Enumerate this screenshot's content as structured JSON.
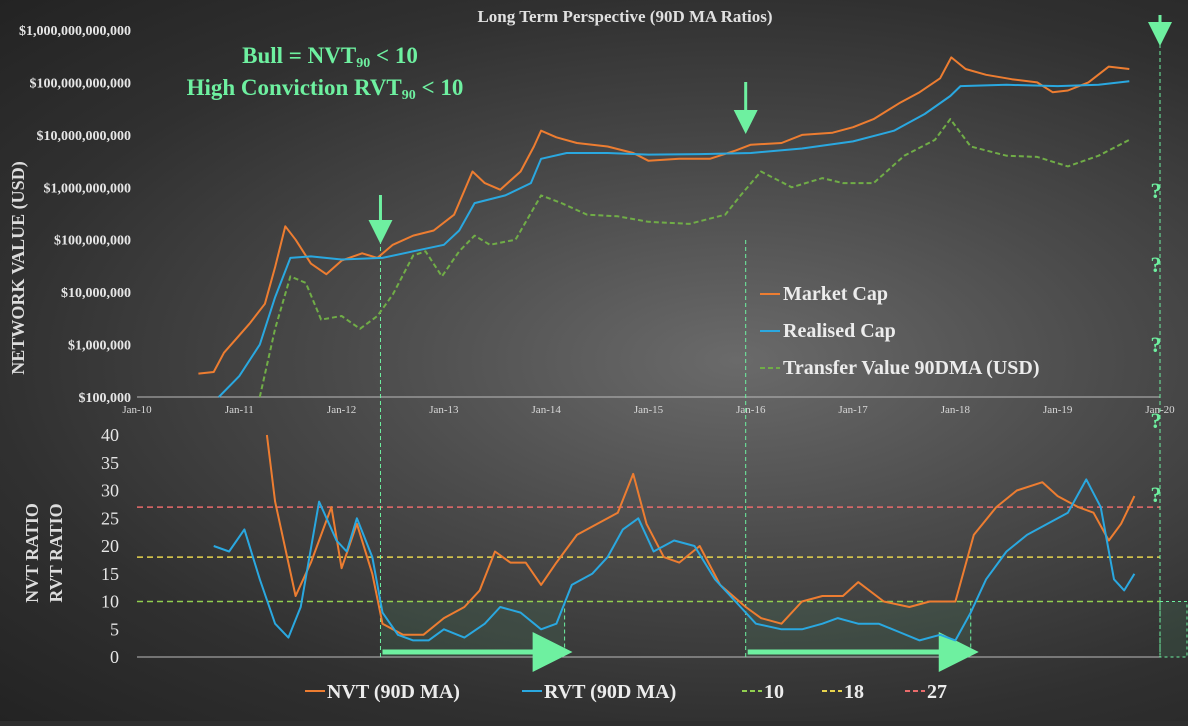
{
  "chart_data": [
    {
      "type": "line",
      "title": "Long Term Perspective (90D MA Ratios)",
      "ylabel": "NETWORK VALUE (USD)",
      "yscale": "log",
      "ylim": [
        100000,
        1000000000000
      ],
      "y_ticks": [
        "$100,000",
        "$1,000,000",
        "$10,000,000",
        "$100,000,000",
        "$1,000,000,000",
        "$10,000,000,000",
        "$100,000,000,000",
        "$1,000,000,000,000"
      ],
      "x_ticks": [
        "Jan-10",
        "Jan-11",
        "Jan-12",
        "Jan-13",
        "Jan-14",
        "Jan-15",
        "Jan-16",
        "Jan-17",
        "Jan-18",
        "Jan-19",
        "Jan-20"
      ],
      "xlim": [
        2010.0,
        2020.0
      ],
      "legend_position": "lower-right",
      "annotations": [
        "Bull = NVT₉₀ < 10",
        "High Conviction RVT₉₀ < 10"
      ],
      "annotation_lines": [
        {
          "pre": "Bull = NVT",
          "sub": "90",
          "post": " < 10"
        },
        {
          "pre": "High Conviction RVT",
          "sub": "90",
          "post": " < 10"
        }
      ],
      "question_marks": [
        "?",
        "?",
        "?",
        "?",
        "?"
      ],
      "arrow_dates": [
        2012.38,
        2015.95,
        2020.0
      ],
      "series": [
        {
          "name": "Market Cap",
          "color": "#ed7d31",
          "style": "solid",
          "points": [
            [
              2010.6,
              280000
            ],
            [
              2010.75,
              300000
            ],
            [
              2010.85,
              700000
            ],
            [
              2011.0,
              1500000
            ],
            [
              2011.1,
              2500000
            ],
            [
              2011.25,
              6000000
            ],
            [
              2011.35,
              30000000
            ],
            [
              2011.45,
              180000000
            ],
            [
              2011.55,
              100000000
            ],
            [
              2011.7,
              35000000
            ],
            [
              2011.85,
              22000000
            ],
            [
              2012.0,
              40000000
            ],
            [
              2012.2,
              55000000
            ],
            [
              2012.35,
              45000000
            ],
            [
              2012.5,
              80000000
            ],
            [
              2012.7,
              120000000
            ],
            [
              2012.9,
              150000000
            ],
            [
              2013.1,
              300000000
            ],
            [
              2013.28,
              2000000000
            ],
            [
              2013.4,
              1200000000
            ],
            [
              2013.55,
              900000000
            ],
            [
              2013.75,
              2000000000
            ],
            [
              2013.88,
              6000000000
            ],
            [
              2013.95,
              12000000000
            ],
            [
              2014.1,
              9000000000
            ],
            [
              2014.3,
              7000000000
            ],
            [
              2014.6,
              6000000000
            ],
            [
              2014.85,
              4500000000
            ],
            [
              2015.0,
              3200000000
            ],
            [
              2015.3,
              3500000000
            ],
            [
              2015.6,
              3500000000
            ],
            [
              2015.85,
              5000000000
            ],
            [
              2016.0,
              6500000000
            ],
            [
              2016.3,
              7000000000
            ],
            [
              2016.5,
              10000000000
            ],
            [
              2016.8,
              11000000000
            ],
            [
              2017.0,
              14000000000
            ],
            [
              2017.2,
              20000000000
            ],
            [
              2017.45,
              40000000000
            ],
            [
              2017.65,
              65000000000
            ],
            [
              2017.85,
              120000000000
            ],
            [
              2017.96,
              300000000000
            ],
            [
              2018.1,
              180000000000
            ],
            [
              2018.3,
              140000000000
            ],
            [
              2018.55,
              115000000000
            ],
            [
              2018.8,
              100000000000
            ],
            [
              2018.95,
              65000000000
            ],
            [
              2019.1,
              70000000000
            ],
            [
              2019.3,
              100000000000
            ],
            [
              2019.5,
              200000000000
            ],
            [
              2019.7,
              180000000000
            ]
          ]
        },
        {
          "name": "Realised Cap",
          "color": "#2aa8e0",
          "style": "solid",
          "points": [
            [
              2010.8,
              100000
            ],
            [
              2011.0,
              250000
            ],
            [
              2011.2,
              1000000
            ],
            [
              2011.35,
              8000000
            ],
            [
              2011.5,
              45000000
            ],
            [
              2011.7,
              48000000
            ],
            [
              2012.0,
              42000000
            ],
            [
              2012.4,
              45000000
            ],
            [
              2012.7,
              60000000
            ],
            [
              2013.0,
              80000000
            ],
            [
              2013.15,
              150000000
            ],
            [
              2013.3,
              500000000
            ],
            [
              2013.6,
              700000000
            ],
            [
              2013.85,
              1200000000
            ],
            [
              2013.95,
              3500000000
            ],
            [
              2014.2,
              4500000000
            ],
            [
              2014.6,
              4500000000
            ],
            [
              2015.0,
              4200000000
            ],
            [
              2015.5,
              4300000000
            ],
            [
              2016.0,
              4500000000
            ],
            [
              2016.5,
              5500000000
            ],
            [
              2017.0,
              7500000000
            ],
            [
              2017.4,
              12000000000
            ],
            [
              2017.7,
              25000000000
            ],
            [
              2017.95,
              55000000000
            ],
            [
              2018.05,
              85000000000
            ],
            [
              2018.5,
              90000000000
            ],
            [
              2019.0,
              85000000000
            ],
            [
              2019.4,
              90000000000
            ],
            [
              2019.7,
              105000000000
            ]
          ]
        },
        {
          "name": "Transfer Value 90DMA (USD)",
          "color": "#70ad47",
          "style": "dashed",
          "points": [
            [
              2011.2,
              100000
            ],
            [
              2011.35,
              2000000
            ],
            [
              2011.5,
              20000000
            ],
            [
              2011.65,
              15000000
            ],
            [
              2011.8,
              3000000
            ],
            [
              2012.0,
              3500000
            ],
            [
              2012.18,
              2000000
            ],
            [
              2012.35,
              3500000
            ],
            [
              2012.5,
              9000000
            ],
            [
              2012.7,
              50000000
            ],
            [
              2012.82,
              60000000
            ],
            [
              2012.98,
              20000000
            ],
            [
              2013.15,
              60000000
            ],
            [
              2013.3,
              120000000
            ],
            [
              2013.45,
              80000000
            ],
            [
              2013.7,
              100000000
            ],
            [
              2013.95,
              700000000
            ],
            [
              2014.15,
              500000000
            ],
            [
              2014.4,
              300000000
            ],
            [
              2014.7,
              280000000
            ],
            [
              2015.0,
              220000000
            ],
            [
              2015.4,
              200000000
            ],
            [
              2015.75,
              300000000
            ],
            [
              2015.9,
              700000000
            ],
            [
              2016.1,
              2000000000
            ],
            [
              2016.4,
              1000000000
            ],
            [
              2016.7,
              1500000000
            ],
            [
              2016.9,
              1200000000
            ],
            [
              2017.2,
              1200000000
            ],
            [
              2017.5,
              4000000000
            ],
            [
              2017.8,
              8000000000
            ],
            [
              2017.95,
              20000000000
            ],
            [
              2018.15,
              6000000000
            ],
            [
              2018.5,
              4000000000
            ],
            [
              2018.8,
              3800000000
            ],
            [
              2019.1,
              2500000000
            ],
            [
              2019.4,
              4000000000
            ],
            [
              2019.7,
              8000000000
            ]
          ]
        }
      ]
    },
    {
      "type": "line",
      "ylabel": [
        "NVT RATIO",
        "RVT RATIO"
      ],
      "ylim": [
        0,
        40
      ],
      "y_ticks": [
        "0",
        "5",
        "10",
        "15",
        "20",
        "25",
        "30",
        "35",
        "40"
      ],
      "xlim": [
        2010.0,
        2020.0
      ],
      "legend_position": "bottom",
      "bull_periods": [
        [
          2012.38,
          2014.18
        ],
        [
          2015.95,
          2018.15
        ]
      ],
      "series": [
        {
          "name": "NVT (90D MA)",
          "color": "#ed7d31",
          "style": "solid",
          "points": [
            [
              2011.27,
              40
            ],
            [
              2011.35,
              28
            ],
            [
              2011.55,
              11
            ],
            [
              2011.7,
              17
            ],
            [
              2011.9,
              27
            ],
            [
              2012.0,
              16
            ],
            [
              2012.15,
              24
            ],
            [
              2012.3,
              15
            ],
            [
              2012.4,
              6
            ],
            [
              2012.6,
              4
            ],
            [
              2012.8,
              4
            ],
            [
              2013.0,
              7
            ],
            [
              2013.2,
              9
            ],
            [
              2013.35,
              12
            ],
            [
              2013.5,
              19
            ],
            [
              2013.65,
              17
            ],
            [
              2013.8,
              17
            ],
            [
              2013.95,
              13
            ],
            [
              2014.1,
              17
            ],
            [
              2014.3,
              22
            ],
            [
              2014.5,
              24
            ],
            [
              2014.7,
              26
            ],
            [
              2014.85,
              33
            ],
            [
              2014.98,
              24
            ],
            [
              2015.15,
              18
            ],
            [
              2015.3,
              17
            ],
            [
              2015.5,
              20
            ],
            [
              2015.7,
              13
            ],
            [
              2015.95,
              9
            ],
            [
              2016.1,
              7
            ],
            [
              2016.3,
              6
            ],
            [
              2016.5,
              10
            ],
            [
              2016.7,
              11
            ],
            [
              2016.9,
              11
            ],
            [
              2017.05,
              13.5
            ],
            [
              2017.3,
              10
            ],
            [
              2017.55,
              9
            ],
            [
              2017.75,
              10
            ],
            [
              2018.0,
              10
            ],
            [
              2018.18,
              22
            ],
            [
              2018.4,
              27
            ],
            [
              2018.6,
              30
            ],
            [
              2018.85,
              31.5
            ],
            [
              2019.0,
              29
            ],
            [
              2019.2,
              27
            ],
            [
              2019.35,
              26
            ],
            [
              2019.5,
              21
            ],
            [
              2019.62,
              24
            ],
            [
              2019.75,
              29
            ]
          ]
        },
        {
          "name": "RVT (90D MA)",
          "color": "#2aa8e0",
          "style": "solid",
          "points": [
            [
              2010.75,
              20
            ],
            [
              2010.9,
              19
            ],
            [
              2011.05,
              23
            ],
            [
              2011.2,
              14
            ],
            [
              2011.35,
              6
            ],
            [
              2011.48,
              3.5
            ],
            [
              2011.6,
              9
            ],
            [
              2011.78,
              28
            ],
            [
              2011.95,
              21
            ],
            [
              2012.05,
              19
            ],
            [
              2012.15,
              25
            ],
            [
              2012.3,
              18
            ],
            [
              2012.4,
              8
            ],
            [
              2012.55,
              4
            ],
            [
              2012.7,
              3
            ],
            [
              2012.85,
              3
            ],
            [
              2013.0,
              5
            ],
            [
              2013.2,
              3.5
            ],
            [
              2013.4,
              6
            ],
            [
              2013.55,
              9
            ],
            [
              2013.75,
              8
            ],
            [
              2013.95,
              5
            ],
            [
              2014.1,
              6
            ],
            [
              2014.25,
              13
            ],
            [
              2014.45,
              15
            ],
            [
              2014.6,
              18
            ],
            [
              2014.75,
              23
            ],
            [
              2014.9,
              25
            ],
            [
              2015.05,
              19
            ],
            [
              2015.25,
              21
            ],
            [
              2015.45,
              20
            ],
            [
              2015.65,
              14
            ],
            [
              2015.9,
              9
            ],
            [
              2016.05,
              6
            ],
            [
              2016.3,
              5
            ],
            [
              2016.5,
              5
            ],
            [
              2016.7,
              6
            ],
            [
              2016.85,
              7
            ],
            [
              2017.05,
              6
            ],
            [
              2017.25,
              6
            ],
            [
              2017.45,
              4.5
            ],
            [
              2017.65,
              3
            ],
            [
              2017.85,
              4
            ],
            [
              2018.0,
              3
            ],
            [
              2018.15,
              8
            ],
            [
              2018.3,
              14
            ],
            [
              2018.5,
              19
            ],
            [
              2018.7,
              22
            ],
            [
              2018.9,
              24
            ],
            [
              2019.1,
              26
            ],
            [
              2019.28,
              32
            ],
            [
              2019.42,
              27
            ],
            [
              2019.55,
              14
            ],
            [
              2019.65,
              12
            ],
            [
              2019.75,
              15
            ]
          ]
        },
        {
          "name": "10",
          "color": "#92d050",
          "style": "dashed",
          "constant": 10
        },
        {
          "name": "18",
          "color": "#e8d44d",
          "style": "dashed",
          "constant": 18
        },
        {
          "name": "27",
          "color": "#e96b6b",
          "style": "dashed",
          "constant": 27
        }
      ]
    }
  ]
}
